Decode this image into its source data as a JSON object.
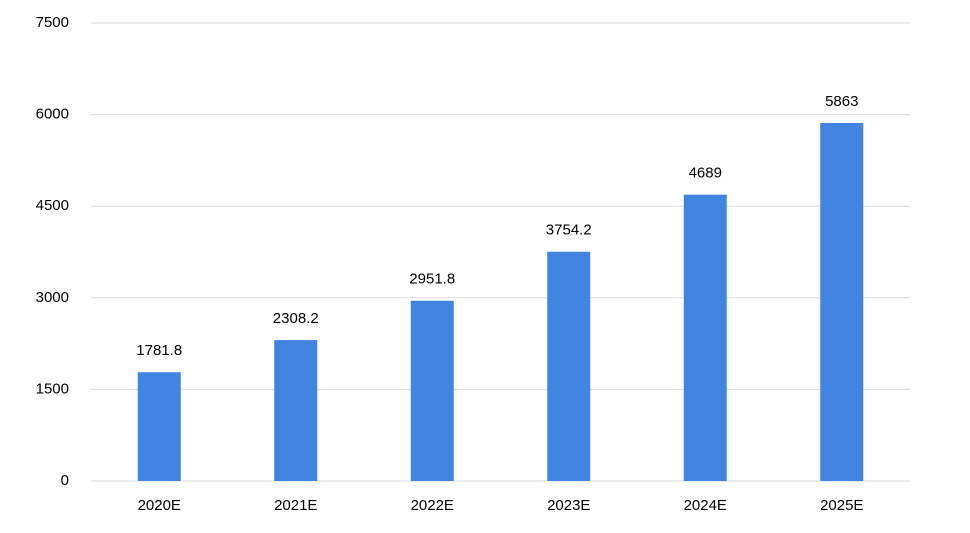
{
  "chart_data": {
    "type": "bar",
    "categories": [
      "2020E",
      "2021E",
      "2022E",
      "2023E",
      "2024E",
      "2025E"
    ],
    "values": [
      1781.8,
      2308.2,
      2951.8,
      3754.2,
      4689,
      5863
    ],
    "color": "#4185e0",
    "ylim": [
      0,
      7500
    ],
    "yticks": [
      0,
      1500,
      3000,
      4500,
      6000,
      7500
    ],
    "grid": true
  }
}
